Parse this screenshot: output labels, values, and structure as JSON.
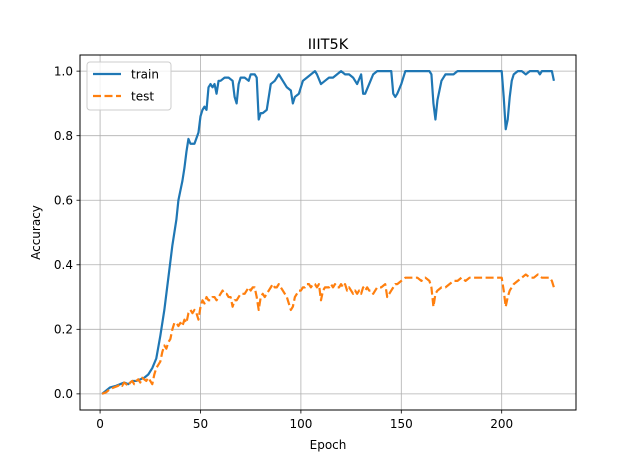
{
  "chart_data": {
    "type": "line",
    "title": "IIIT5K",
    "xlabel": "Epoch",
    "ylabel": "Accuracy",
    "xlim": [
      -10,
      237
    ],
    "ylim": [
      -0.05,
      1.05
    ],
    "xticks": [
      0,
      50,
      100,
      150,
      200
    ],
    "yticks": [
      0.0,
      0.2,
      0.4,
      0.6,
      0.8,
      1.0
    ],
    "xtick_labels": [
      "0",
      "50",
      "100",
      "150",
      "200"
    ],
    "ytick_labels": [
      "0.0",
      "0.2",
      "0.4",
      "0.6",
      "0.8",
      "1.0"
    ],
    "grid": true,
    "legend_position": "top-left",
    "series": [
      {
        "name": "train",
        "color": "#1f77b4",
        "style": "solid",
        "points": [
          [
            1,
            0.0
          ],
          [
            3,
            0.01
          ],
          [
            5,
            0.02
          ],
          [
            8,
            0.025
          ],
          [
            10,
            0.03
          ],
          [
            12,
            0.035
          ],
          [
            14,
            0.03
          ],
          [
            16,
            0.04
          ],
          [
            18,
            0.04
          ],
          [
            20,
            0.045
          ],
          [
            22,
            0.05
          ],
          [
            24,
            0.06
          ],
          [
            26,
            0.08
          ],
          [
            28,
            0.11
          ],
          [
            30,
            0.18
          ],
          [
            32,
            0.26
          ],
          [
            34,
            0.36
          ],
          [
            36,
            0.46
          ],
          [
            38,
            0.54
          ],
          [
            39,
            0.6
          ],
          [
            40,
            0.63
          ],
          [
            41,
            0.66
          ],
          [
            42,
            0.7
          ],
          [
            43,
            0.75
          ],
          [
            44,
            0.79
          ],
          [
            45,
            0.775
          ],
          [
            47,
            0.775
          ],
          [
            49,
            0.81
          ],
          [
            50,
            0.86
          ],
          [
            51,
            0.88
          ],
          [
            52,
            0.89
          ],
          [
            53,
            0.88
          ],
          [
            54,
            0.95
          ],
          [
            55,
            0.96
          ],
          [
            56,
            0.95
          ],
          [
            57,
            0.96
          ],
          [
            58,
            0.93
          ],
          [
            59,
            0.97
          ],
          [
            60,
            0.97
          ],
          [
            62,
            0.98
          ],
          [
            64,
            0.98
          ],
          [
            66,
            0.97
          ],
          [
            67,
            0.92
          ],
          [
            68,
            0.9
          ],
          [
            69,
            0.96
          ],
          [
            70,
            0.98
          ],
          [
            72,
            0.98
          ],
          [
            74,
            0.97
          ],
          [
            75,
            0.99
          ],
          [
            77,
            0.99
          ],
          [
            78,
            0.98
          ],
          [
            79,
            0.85
          ],
          [
            80,
            0.87
          ],
          [
            81,
            0.87
          ],
          [
            83,
            0.88
          ],
          [
            85,
            0.96
          ],
          [
            87,
            0.97
          ],
          [
            89,
            0.99
          ],
          [
            91,
            0.97
          ],
          [
            93,
            0.95
          ],
          [
            95,
            0.94
          ],
          [
            96,
            0.9
          ],
          [
            97,
            0.92
          ],
          [
            99,
            0.93
          ],
          [
            101,
            0.97
          ],
          [
            103,
            0.98
          ],
          [
            105,
            0.99
          ],
          [
            107,
            1.0
          ],
          [
            108,
            0.99
          ],
          [
            110,
            0.96
          ],
          [
            112,
            0.97
          ],
          [
            114,
            0.98
          ],
          [
            116,
            0.98
          ],
          [
            118,
            0.99
          ],
          [
            120,
            1.0
          ],
          [
            122,
            0.99
          ],
          [
            124,
            0.99
          ],
          [
            126,
            0.98
          ],
          [
            128,
            0.96
          ],
          [
            130,
            0.99
          ],
          [
            131,
            0.93
          ],
          [
            132,
            0.93
          ],
          [
            134,
            0.96
          ],
          [
            136,
            0.99
          ],
          [
            138,
            1.0
          ],
          [
            140,
            1.0
          ],
          [
            142,
            1.0
          ],
          [
            145,
            1.0
          ],
          [
            146,
            0.93
          ],
          [
            147,
            0.92
          ],
          [
            148,
            0.93
          ],
          [
            150,
            0.96
          ],
          [
            152,
            1.0
          ],
          [
            154,
            1.0
          ],
          [
            156,
            1.0
          ],
          [
            158,
            1.0
          ],
          [
            160,
            1.0
          ],
          [
            162,
            1.0
          ],
          [
            164,
            1.0
          ],
          [
            165,
            0.99
          ],
          [
            166,
            0.9
          ],
          [
            167,
            0.85
          ],
          [
            168,
            0.91
          ],
          [
            169,
            0.94
          ],
          [
            170,
            0.97
          ],
          [
            171,
            0.98
          ],
          [
            172,
            0.99
          ],
          [
            174,
            0.99
          ],
          [
            176,
            0.99
          ],
          [
            178,
            1.0
          ],
          [
            180,
            1.0
          ],
          [
            184,
            1.0
          ],
          [
            186,
            1.0
          ],
          [
            188,
            1.0
          ],
          [
            190,
            1.0
          ],
          [
            192,
            1.0
          ],
          [
            194,
            1.0
          ],
          [
            197,
            1.0
          ],
          [
            200,
            1.0
          ],
          [
            201,
            0.92
          ],
          [
            202,
            0.82
          ],
          [
            203,
            0.85
          ],
          [
            204,
            0.92
          ],
          [
            205,
            0.97
          ],
          [
            206,
            0.99
          ],
          [
            208,
            1.0
          ],
          [
            210,
            1.0
          ],
          [
            212,
            0.99
          ],
          [
            214,
            1.0
          ],
          [
            216,
            1.0
          ],
          [
            218,
            1.0
          ],
          [
            219,
            0.99
          ],
          [
            220,
            1.0
          ],
          [
            222,
            1.0
          ],
          [
            224,
            1.0
          ],
          [
            225,
            1.0
          ],
          [
            226,
            0.97
          ]
        ]
      },
      {
        "name": "test",
        "color": "#ff7f0e",
        "style": "dashed",
        "points": [
          [
            1,
            0.0
          ],
          [
            3,
            0.005
          ],
          [
            5,
            0.015
          ],
          [
            7,
            0.02
          ],
          [
            9,
            0.025
          ],
          [
            10,
            0.03
          ],
          [
            11,
            0.025
          ],
          [
            12,
            0.035
          ],
          [
            13,
            0.03
          ],
          [
            14,
            0.025
          ],
          [
            15,
            0.035
          ],
          [
            16,
            0.04
          ],
          [
            17,
            0.03
          ],
          [
            18,
            0.04
          ],
          [
            19,
            0.045
          ],
          [
            20,
            0.035
          ],
          [
            21,
            0.05
          ],
          [
            22,
            0.045
          ],
          [
            23,
            0.04
          ],
          [
            24,
            0.05
          ],
          [
            25,
            0.04
          ],
          [
            26,
            0.03
          ],
          [
            27,
            0.06
          ],
          [
            28,
            0.08
          ],
          [
            29,
            0.09
          ],
          [
            30,
            0.1
          ],
          [
            31,
            0.13
          ],
          [
            32,
            0.15
          ],
          [
            33,
            0.14
          ],
          [
            34,
            0.16
          ],
          [
            35,
            0.17
          ],
          [
            36,
            0.2
          ],
          [
            37,
            0.22
          ],
          [
            38,
            0.22
          ],
          [
            39,
            0.21
          ],
          [
            40,
            0.22
          ],
          [
            41,
            0.21
          ],
          [
            42,
            0.23
          ],
          [
            43,
            0.22
          ],
          [
            44,
            0.25
          ],
          [
            45,
            0.26
          ],
          [
            46,
            0.25
          ],
          [
            47,
            0.26
          ],
          [
            48,
            0.25
          ],
          [
            49,
            0.23
          ],
          [
            50,
            0.27
          ],
          [
            51,
            0.29
          ],
          [
            52,
            0.28
          ],
          [
            53,
            0.3
          ],
          [
            54,
            0.29
          ],
          [
            55,
            0.29
          ],
          [
            56,
            0.3
          ],
          [
            57,
            0.3
          ],
          [
            58,
            0.29
          ],
          [
            59,
            0.3
          ],
          [
            60,
            0.31
          ],
          [
            61,
            0.32
          ],
          [
            62,
            0.31
          ],
          [
            63,
            0.31
          ],
          [
            64,
            0.3
          ],
          [
            65,
            0.3
          ],
          [
            66,
            0.27
          ],
          [
            67,
            0.29
          ],
          [
            68,
            0.29
          ],
          [
            69,
            0.3
          ],
          [
            70,
            0.31
          ],
          [
            71,
            0.31
          ],
          [
            72,
            0.31
          ],
          [
            73,
            0.32
          ],
          [
            74,
            0.33
          ],
          [
            75,
            0.32
          ],
          [
            76,
            0.33
          ],
          [
            77,
            0.33
          ],
          [
            78,
            0.3
          ],
          [
            79,
            0.26
          ],
          [
            80,
            0.3
          ],
          [
            81,
            0.31
          ],
          [
            82,
            0.3
          ],
          [
            83,
            0.31
          ],
          [
            84,
            0.32
          ],
          [
            85,
            0.33
          ],
          [
            86,
            0.34
          ],
          [
            87,
            0.33
          ],
          [
            88,
            0.33
          ],
          [
            89,
            0.34
          ],
          [
            90,
            0.33
          ],
          [
            91,
            0.32
          ],
          [
            92,
            0.31
          ],
          [
            93,
            0.3
          ],
          [
            94,
            0.28
          ],
          [
            95,
            0.26
          ],
          [
            96,
            0.27
          ],
          [
            97,
            0.3
          ],
          [
            98,
            0.31
          ],
          [
            99,
            0.32
          ],
          [
            100,
            0.32
          ],
          [
            101,
            0.33
          ],
          [
            102,
            0.33
          ],
          [
            103,
            0.34
          ],
          [
            104,
            0.34
          ],
          [
            105,
            0.33
          ],
          [
            106,
            0.34
          ],
          [
            107,
            0.34
          ],
          [
            108,
            0.33
          ],
          [
            109,
            0.34
          ],
          [
            110,
            0.29
          ],
          [
            111,
            0.32
          ],
          [
            112,
            0.33
          ],
          [
            113,
            0.33
          ],
          [
            114,
            0.33
          ],
          [
            115,
            0.34
          ],
          [
            116,
            0.33
          ],
          [
            117,
            0.34
          ],
          [
            118,
            0.33
          ],
          [
            119,
            0.33
          ],
          [
            120,
            0.34
          ],
          [
            121,
            0.33
          ],
          [
            122,
            0.34
          ],
          [
            123,
            0.32
          ],
          [
            124,
            0.33
          ],
          [
            125,
            0.32
          ],
          [
            126,
            0.31
          ],
          [
            127,
            0.32
          ],
          [
            128,
            0.31
          ],
          [
            129,
            0.32
          ],
          [
            130,
            0.31
          ],
          [
            131,
            0.33
          ],
          [
            132,
            0.32
          ],
          [
            133,
            0.33
          ],
          [
            134,
            0.32
          ],
          [
            135,
            0.32
          ],
          [
            136,
            0.31
          ],
          [
            137,
            0.32
          ],
          [
            138,
            0.33
          ],
          [
            140,
            0.33
          ],
          [
            142,
            0.34
          ],
          [
            143,
            0.3
          ],
          [
            144,
            0.31
          ],
          [
            145,
            0.32
          ],
          [
            146,
            0.33
          ],
          [
            147,
            0.34
          ],
          [
            148,
            0.34
          ],
          [
            150,
            0.35
          ],
          [
            152,
            0.36
          ],
          [
            154,
            0.36
          ],
          [
            156,
            0.36
          ],
          [
            158,
            0.36
          ],
          [
            160,
            0.35
          ],
          [
            162,
            0.36
          ],
          [
            164,
            0.35
          ],
          [
            165,
            0.33
          ],
          [
            166,
            0.27
          ],
          [
            167,
            0.31
          ],
          [
            168,
            0.32
          ],
          [
            170,
            0.33
          ],
          [
            172,
            0.33
          ],
          [
            174,
            0.34
          ],
          [
            176,
            0.35
          ],
          [
            178,
            0.35
          ],
          [
            180,
            0.36
          ],
          [
            182,
            0.35
          ],
          [
            184,
            0.36
          ],
          [
            186,
            0.36
          ],
          [
            188,
            0.36
          ],
          [
            190,
            0.36
          ],
          [
            192,
            0.36
          ],
          [
            194,
            0.36
          ],
          [
            196,
            0.36
          ],
          [
            198,
            0.36
          ],
          [
            199,
            0.36
          ],
          [
            200,
            0.36
          ],
          [
            201,
            0.32
          ],
          [
            202,
            0.27
          ],
          [
            203,
            0.3
          ],
          [
            204,
            0.32
          ],
          [
            206,
            0.34
          ],
          [
            208,
            0.35
          ],
          [
            210,
            0.36
          ],
          [
            212,
            0.37
          ],
          [
            214,
            0.36
          ],
          [
            216,
            0.36
          ],
          [
            218,
            0.37
          ],
          [
            220,
            0.36
          ],
          [
            222,
            0.36
          ],
          [
            224,
            0.36
          ],
          [
            225,
            0.35
          ],
          [
            226,
            0.33
          ]
        ]
      }
    ]
  }
}
